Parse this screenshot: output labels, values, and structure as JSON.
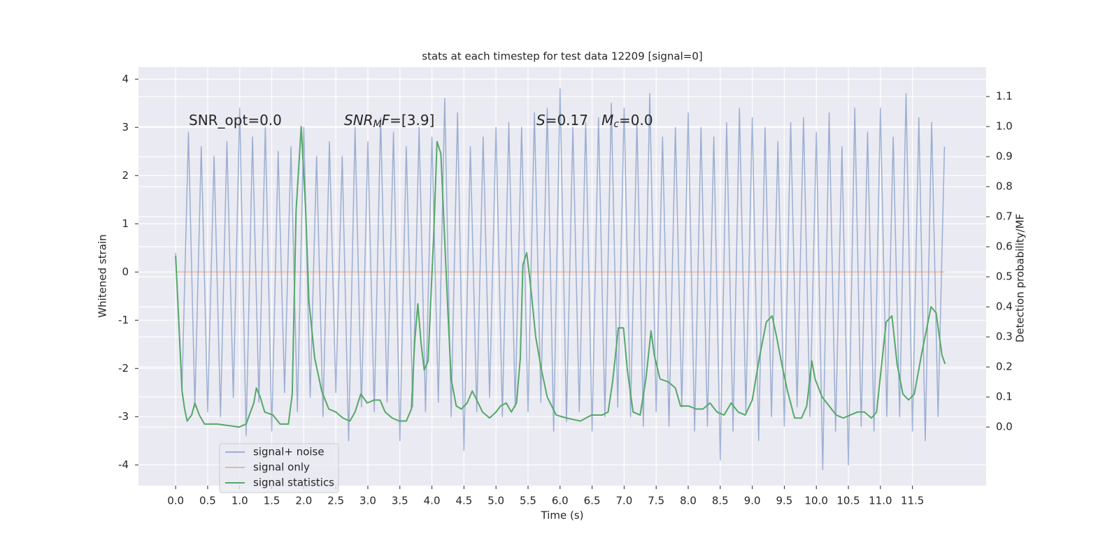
{
  "chart_data": {
    "type": "line",
    "title": "stats at each timestep for test data 12209 [signal=0]",
    "x_label": "Time (s)",
    "y_label": "Whitened strain",
    "y2_label": "Detection probability/MF",
    "annotations": [
      {
        "parts": [
          {
            "text": "SNR_opt=0.0",
            "style": "normal"
          }
        ]
      },
      {
        "parts": [
          {
            "text": "SNR",
            "style": "italic"
          },
          {
            "text": "M",
            "style": "sub"
          },
          {
            "text": "F",
            "style": "italic"
          },
          {
            "text": "=[3.9]",
            "style": "normal"
          }
        ]
      },
      {
        "parts": [
          {
            "text": "S",
            "style": "italic"
          },
          {
            "text": "=0.17   ",
            "style": "normal"
          },
          {
            "text": "M",
            "style": "italic"
          },
          {
            "text": "c",
            "style": "sub"
          },
          {
            "text": "=0.0",
            "style": "normal"
          }
        ]
      }
    ],
    "xlim": [
      -0.58,
      12.65
    ],
    "ylim": [
      -4.43,
      4.25
    ],
    "y2lim": [
      -0.195,
      1.198
    ],
    "xticks": [
      {
        "value": 0,
        "label": "0.0"
      },
      0.5,
      {
        "value": 1,
        "label": "1.0"
      },
      1.5,
      {
        "value": 2,
        "label": "2.0"
      },
      2.5,
      {
        "value": 3,
        "label": "3.0"
      },
      3.5,
      {
        "value": 4,
        "label": "4.0"
      },
      4.5,
      {
        "value": 5,
        "label": "5.0"
      },
      5.5,
      {
        "value": 6,
        "label": "6.0"
      },
      6.5,
      {
        "value": 7,
        "label": "7.0"
      },
      7.5,
      {
        "value": 8,
        "label": "8.0"
      },
      8.5,
      {
        "value": 9,
        "label": "9.0"
      },
      9.5,
      {
        "value": 10,
        "label": "10.0"
      },
      10.5,
      {
        "value": 11,
        "label": "11.0"
      },
      11.5
    ],
    "yticks": [
      -4,
      -3,
      -2,
      -1,
      0,
      1,
      2,
      3,
      4
    ],
    "y2ticks": [
      {
        "value": 0,
        "label": "0.0"
      },
      0.1,
      0.2,
      0.3,
      0.4,
      0.5,
      0.6,
      0.7,
      0.8,
      0.9,
      {
        "value": 1,
        "label": "1.0"
      },
      1.1
    ],
    "grid": true,
    "legend": "lower left",
    "series": [
      {
        "name": "signal+ noise",
        "color": "#4c72b0",
        "alpha": 0.5,
        "x": [
          0,
          0.1,
          0.2,
          0.3,
          0.4,
          0.5,
          0.6,
          0.7,
          0.8,
          0.9,
          1,
          1.1,
          1.2,
          1.3,
          1.4,
          1.5,
          1.6,
          1.7,
          1.8,
          1.9,
          2,
          2.1,
          2.2,
          2.3,
          2.4,
          2.5,
          2.6,
          2.7,
          2.8,
          2.9,
          3,
          3.1,
          3.2,
          3.3,
          3.4,
          3.5,
          3.6,
          3.7,
          3.8,
          3.9,
          4,
          4.1,
          4.2,
          4.3,
          4.4,
          4.5,
          4.6,
          4.7,
          4.8,
          4.9,
          5,
          5.1,
          5.2,
          5.3,
          5.4,
          5.5,
          5.6,
          5.7,
          5.8,
          5.9,
          6,
          6.1,
          6.2,
          6.3,
          6.4,
          6.5,
          6.6,
          6.7,
          6.8,
          6.9,
          7,
          7.1,
          7.2,
          7.3,
          7.4,
          7.5,
          7.6,
          7.7,
          7.8,
          7.9,
          8,
          8.1,
          8.2,
          8.3,
          8.4,
          8.5,
          8.6,
          8.7,
          8.8,
          8.9,
          9,
          9.1,
          9.2,
          9.3,
          9.4,
          9.5,
          9.6,
          9.7,
          9.8,
          9.9,
          10,
          10.1,
          10.2,
          10.3,
          10.4,
          10.5,
          10.6,
          10.7,
          10.8,
          10.9,
          11,
          11.1,
          11.2,
          11.3,
          11.4,
          11.5,
          11.6,
          11.7,
          11.8,
          11.9,
          12
        ],
        "values": [
          0.4,
          -2.4,
          2.9,
          -2.8,
          2.6,
          -2.9,
          2.4,
          -3.0,
          2.7,
          -2.6,
          3.4,
          -3.4,
          2.8,
          -2.7,
          3.0,
          -3.3,
          2.5,
          -2.5,
          2.6,
          -2.9,
          3.0,
          -2.6,
          2.4,
          -3.0,
          2.7,
          -2.5,
          2.4,
          -3.5,
          3.0,
          -2.8,
          2.7,
          -2.9,
          3.2,
          -2.7,
          2.9,
          -3.5,
          2.6,
          -2.8,
          3.0,
          -2.9,
          2.8,
          -2.7,
          3.6,
          -3.0,
          3.3,
          -3.7,
          2.6,
          -2.9,
          2.8,
          -2.6,
          3.0,
          -3.0,
          3.1,
          -2.8,
          3.0,
          -2.9,
          3.3,
          -2.7,
          3.4,
          -3.3,
          3.8,
          -3.1,
          3.0,
          -2.9,
          3.1,
          -3.3,
          3.2,
          -3.0,
          3.5,
          -2.8,
          3.4,
          -3.0,
          3.1,
          -3.2,
          3.7,
          -2.9,
          2.8,
          -3.2,
          3.0,
          -2.8,
          3.3,
          -3.3,
          3.0,
          -3.2,
          2.8,
          -3.9,
          3.1,
          -3.3,
          3.4,
          -2.9,
          3.2,
          -3.5,
          3.0,
          -3.0,
          2.7,
          -3.2,
          3.1,
          -2.8,
          3.2,
          -3.0,
          2.9,
          -4.1,
          3.3,
          -3.3,
          2.6,
          -4.0,
          3.4,
          -3.2,
          2.9,
          -3.3,
          3.4,
          -3.0,
          2.8,
          -3.0,
          3.7,
          -3.3,
          3.2,
          -3.5,
          3.1,
          -3.0,
          2.6
        ]
      },
      {
        "name": "signal only",
        "color": "#dd8452",
        "alpha": 0.5,
        "x": [
          0,
          12
        ],
        "values": [
          0,
          0
        ]
      },
      {
        "name": "signal statistics",
        "color": "#55a868",
        "alpha": 1,
        "axis": "y2",
        "x": [
          0,
          0.1,
          0.14,
          0.18,
          0.25,
          0.3,
          0.37,
          0.45,
          0.65,
          0.99,
          1.1,
          1.22,
          1.26,
          1.32,
          1.39,
          1.52,
          1.63,
          1.76,
          1.82,
          1.88,
          1.96,
          2.03,
          2.08,
          2.17,
          2.28,
          2.39,
          2.5,
          2.61,
          2.72,
          2.8,
          2.89,
          2.99,
          3.1,
          3.19,
          3.27,
          3.38,
          3.49,
          3.6,
          3.68,
          3.73,
          3.78,
          3.83,
          3.88,
          3.94,
          4.03,
          4.08,
          4.14,
          4.25,
          4.3,
          4.38,
          4.46,
          4.55,
          4.63,
          4.7,
          4.79,
          4.9,
          5,
          5.07,
          5.16,
          5.24,
          5.32,
          5.38,
          5.42,
          5.48,
          5.54,
          5.62,
          5.71,
          5.8,
          5.94,
          6.1,
          6.32,
          6.49,
          6.66,
          6.75,
          6.82,
          6.91,
          6.99,
          7.05,
          7.14,
          7.25,
          7.34,
          7.42,
          7.47,
          7.56,
          7.69,
          7.8,
          7.88,
          8.01,
          8.12,
          8.23,
          8.34,
          8.45,
          8.56,
          8.67,
          8.78,
          8.89,
          9,
          9.11,
          9.22,
          9.31,
          9.38,
          9.46,
          9.55,
          9.66,
          9.77,
          9.85,
          9.93,
          9.98,
          10.09,
          10.2,
          10.31,
          10.42,
          10.53,
          10.64,
          10.75,
          10.86,
          10.94,
          11.09,
          11.18,
          11.26,
          11.35,
          11.44,
          11.53,
          11.64,
          11.79,
          11.87,
          11.96,
          12.01
        ],
        "values": [
          0.57,
          0.12,
          0.06,
          0.02,
          0.04,
          0.08,
          0.04,
          0.01,
          0.01,
          0.0,
          0.01,
          0.08,
          0.13,
          0.1,
          0.05,
          0.04,
          0.01,
          0.01,
          0.11,
          0.72,
          1.0,
          0.72,
          0.42,
          0.23,
          0.12,
          0.06,
          0.05,
          0.03,
          0.02,
          0.05,
          0.11,
          0.08,
          0.09,
          0.09,
          0.05,
          0.03,
          0.02,
          0.02,
          0.06,
          0.28,
          0.41,
          0.28,
          0.19,
          0.22,
          0.65,
          0.95,
          0.91,
          0.38,
          0.16,
          0.07,
          0.06,
          0.08,
          0.12,
          0.09,
          0.05,
          0.03,
          0.05,
          0.07,
          0.08,
          0.05,
          0.08,
          0.23,
          0.54,
          0.58,
          0.47,
          0.3,
          0.19,
          0.1,
          0.04,
          0.03,
          0.02,
          0.04,
          0.04,
          0.05,
          0.15,
          0.33,
          0.33,
          0.19,
          0.05,
          0.04,
          0.16,
          0.32,
          0.24,
          0.16,
          0.15,
          0.13,
          0.07,
          0.07,
          0.06,
          0.06,
          0.08,
          0.05,
          0.04,
          0.08,
          0.05,
          0.04,
          0.09,
          0.23,
          0.35,
          0.37,
          0.3,
          0.21,
          0.12,
          0.03,
          0.03,
          0.07,
          0.22,
          0.16,
          0.1,
          0.07,
          0.04,
          0.03,
          0.04,
          0.05,
          0.05,
          0.03,
          0.05,
          0.35,
          0.37,
          0.21,
          0.11,
          0.09,
          0.11,
          0.24,
          0.4,
          0.38,
          0.24,
          0.21
        ]
      }
    ]
  }
}
